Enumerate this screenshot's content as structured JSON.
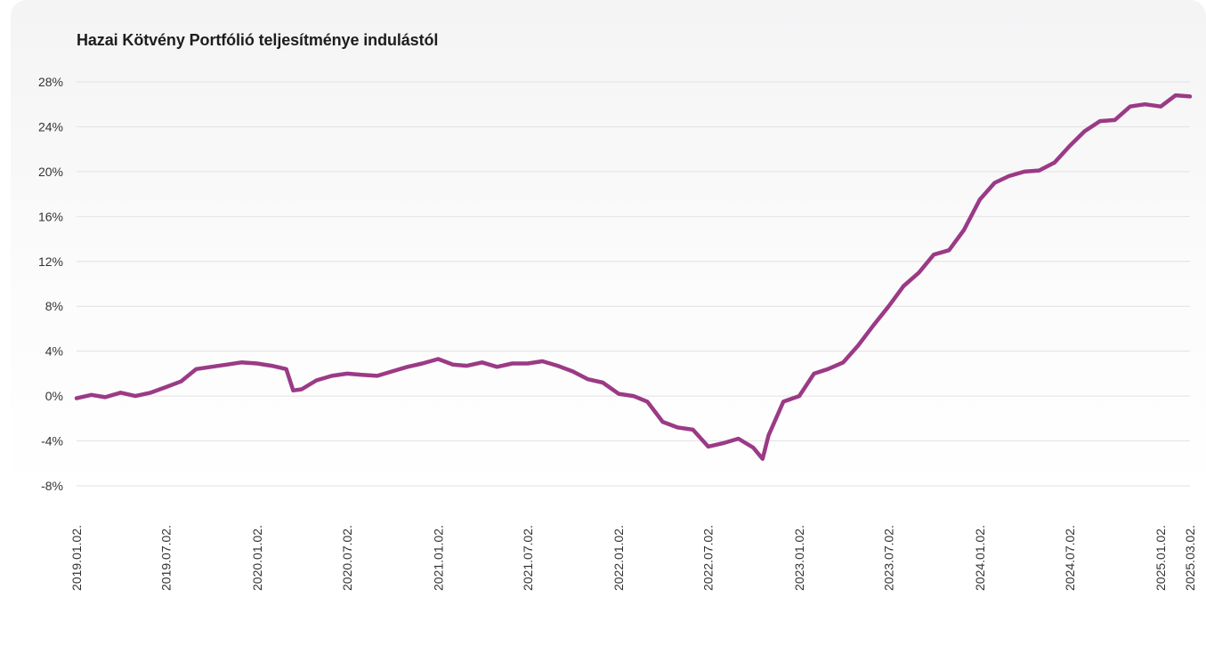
{
  "chart_data": {
    "type": "line",
    "title": "Hazai Kötvény Portfólió teljesítménye indulástól",
    "xlabel": "",
    "ylabel": "",
    "ylim": [
      -8,
      28
    ],
    "y_ticks": [
      28,
      24,
      20,
      16,
      12,
      8,
      4,
      0,
      -4,
      -8
    ],
    "y_tick_labels": [
      "28%",
      "24%",
      "20%",
      "16%",
      "12%",
      "8%",
      "4%",
      "0%",
      "-4%",
      "-8%"
    ],
    "x_range": [
      "2019.01.02.",
      "2025.03.02."
    ],
    "x_tick_labels": [
      "2019.01.02.",
      "2019.07.02.",
      "2020.01.02.",
      "2020.07.02.",
      "2021.01.02.",
      "2021.07.02.",
      "2022.01.02.",
      "2022.07.02.",
      "2023.01.02.",
      "2023.07.02.",
      "2024.01.02.",
      "2024.07.02.",
      "2025.01.02.",
      "2025.03.02."
    ],
    "grid": true,
    "legend": "none",
    "series_color": "#9b3a86",
    "x": [
      "2019.01.02.",
      "2019.02.01.",
      "2019.03.01.",
      "2019.04.01.",
      "2019.05.01.",
      "2019.06.01.",
      "2019.07.02.",
      "2019.08.01.",
      "2019.09.01.",
      "2019.10.01.",
      "2019.11.01.",
      "2019.12.01.",
      "2020.01.02.",
      "2020.02.01.",
      "2020.03.01.",
      "2020.03.15.",
      "2020.04.01.",
      "2020.05.01.",
      "2020.06.01.",
      "2020.07.02.",
      "2020.08.01.",
      "2020.09.01.",
      "2020.10.01.",
      "2020.11.01.",
      "2020.12.01.",
      "2021.01.02.",
      "2021.02.01.",
      "2021.03.01.",
      "2021.04.01.",
      "2021.05.01.",
      "2021.06.01.",
      "2021.07.02.",
      "2021.08.01.",
      "2021.09.01.",
      "2021.10.01.",
      "2021.11.01.",
      "2021.12.01.",
      "2022.01.02.",
      "2022.02.01.",
      "2022.03.01.",
      "2022.04.01.",
      "2022.05.01.",
      "2022.06.01.",
      "2022.07.02.",
      "2022.08.01.",
      "2022.09.01.",
      "2022.10.01.",
      "2022.10.20.",
      "2022.11.01.",
      "2022.12.01.",
      "2023.01.02.",
      "2023.02.01.",
      "2023.03.01.",
      "2023.04.01.",
      "2023.05.01.",
      "2023.06.01.",
      "2023.07.02.",
      "2023.08.01.",
      "2023.09.01.",
      "2023.10.01.",
      "2023.11.01.",
      "2023.12.01.",
      "2024.01.02.",
      "2024.02.01.",
      "2024.03.01.",
      "2024.04.01.",
      "2024.05.01.",
      "2024.06.01.",
      "2024.07.02.",
      "2024.08.01.",
      "2024.09.01.",
      "2024.10.01.",
      "2024.11.01.",
      "2024.12.01.",
      "2025.01.02.",
      "2025.02.01.",
      "2025.03.02."
    ],
    "series": [
      {
        "values": [
          -0.2,
          0.1,
          -0.1,
          0.3,
          0.0,
          0.3,
          0.8,
          1.3,
          2.4,
          2.6,
          2.8,
          3.0,
          2.9,
          2.7,
          2.4,
          0.5,
          0.6,
          1.4,
          1.8,
          2.0,
          1.9,
          1.8,
          2.2,
          2.6,
          2.9,
          3.3,
          2.8,
          2.7,
          3.0,
          2.6,
          2.9,
          2.9,
          3.1,
          2.7,
          2.2,
          1.5,
          1.2,
          0.2,
          0.0,
          -0.5,
          -2.3,
          -2.8,
          -3.0,
          -4.5,
          -4.2,
          -3.8,
          -4.6,
          -5.6,
          -3.5,
          -0.5,
          0.0,
          2.0,
          2.4,
          3.0,
          4.5,
          6.3,
          8.0,
          9.8,
          11.0,
          12.6,
          13.0,
          14.8,
          17.5,
          19.0,
          19.6,
          20.0,
          20.1,
          20.8,
          22.3,
          23.6,
          24.5,
          24.6,
          25.8,
          26.0,
          25.8,
          26.8,
          26.7
        ]
      }
    ]
  }
}
